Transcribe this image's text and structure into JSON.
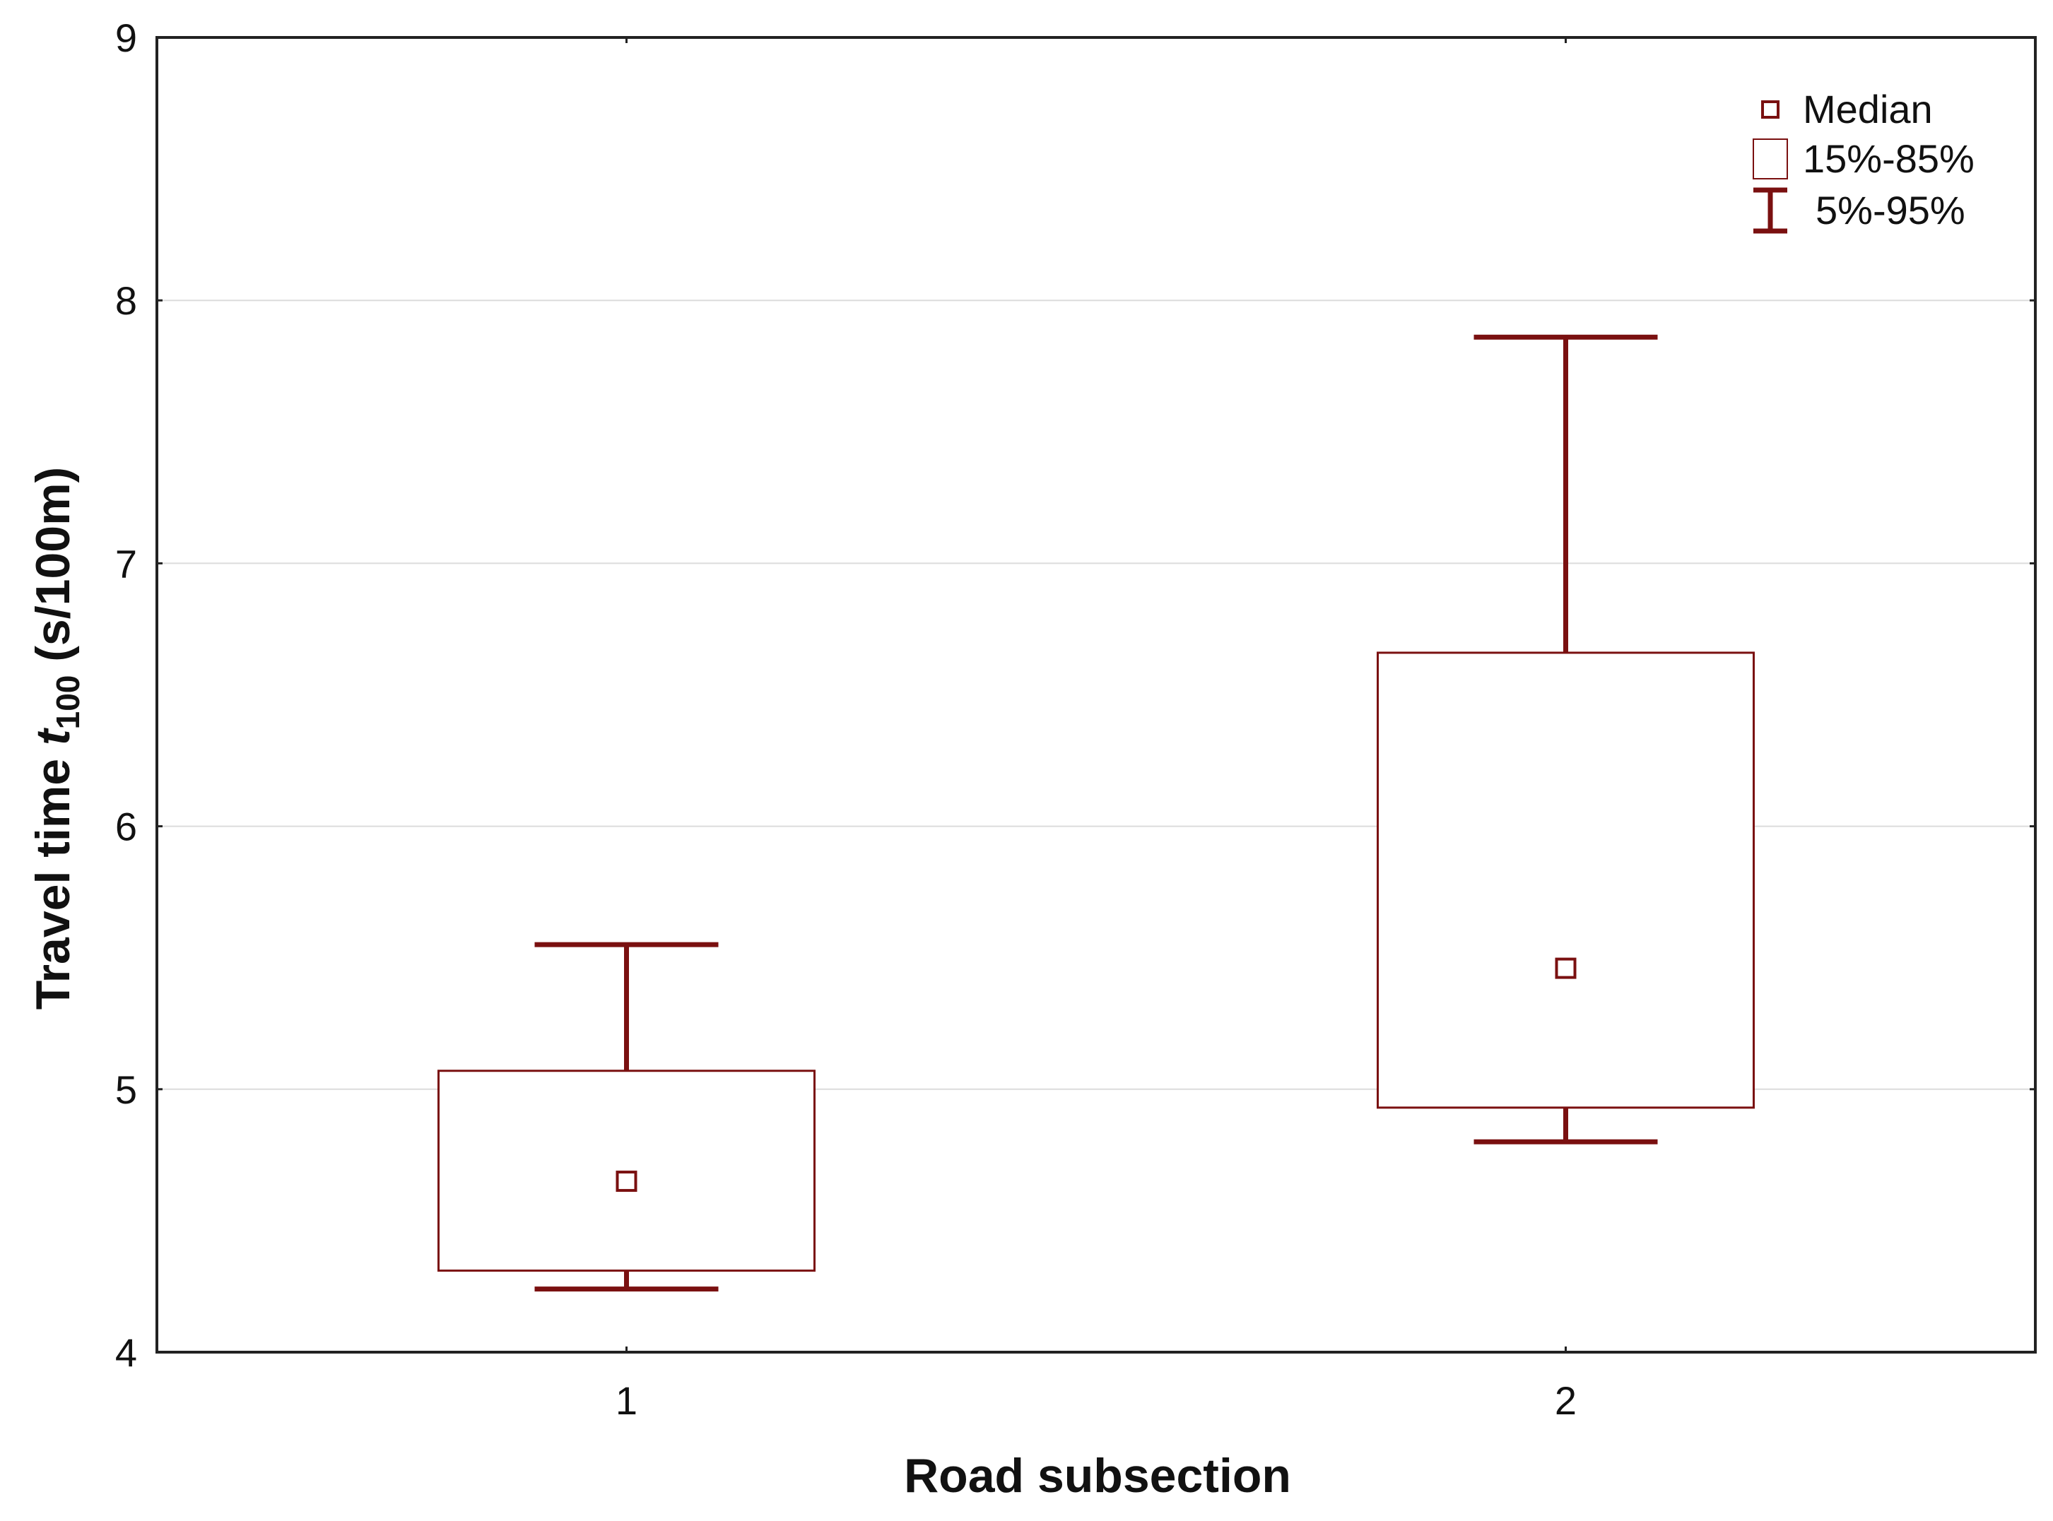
{
  "chart_data": {
    "type": "box",
    "title": "",
    "xlabel": "Road subsection",
    "ylabel": {
      "prefix": "Travel time ",
      "symbol": "t",
      "subscript": "100",
      "suffix": " (s/100m)"
    },
    "ylim": [
      4,
      9
    ],
    "yticks": [
      4,
      5,
      6,
      7,
      8,
      9
    ],
    "categories": [
      "1",
      "2"
    ],
    "grid": "horizontal",
    "legend_position": "top-right",
    "legend": [
      {
        "label": "Median",
        "marker": "small-square"
      },
      {
        "label": "15%-85%",
        "marker": "box"
      },
      {
        "label": "5%-95%",
        "marker": "whisker"
      }
    ],
    "series": [
      {
        "category": "1",
        "median": 4.65,
        "box": [
          4.31,
          5.07
        ],
        "whisker": [
          4.24,
          5.55
        ]
      },
      {
        "category": "2",
        "median": 5.46,
        "box": [
          4.93,
          6.66
        ],
        "whisker": [
          4.8,
          7.86
        ]
      }
    ],
    "colors": {
      "marks": "#7a1010",
      "axis": "#222222",
      "grid": "#dcdcdc",
      "text": "#111111"
    }
  }
}
